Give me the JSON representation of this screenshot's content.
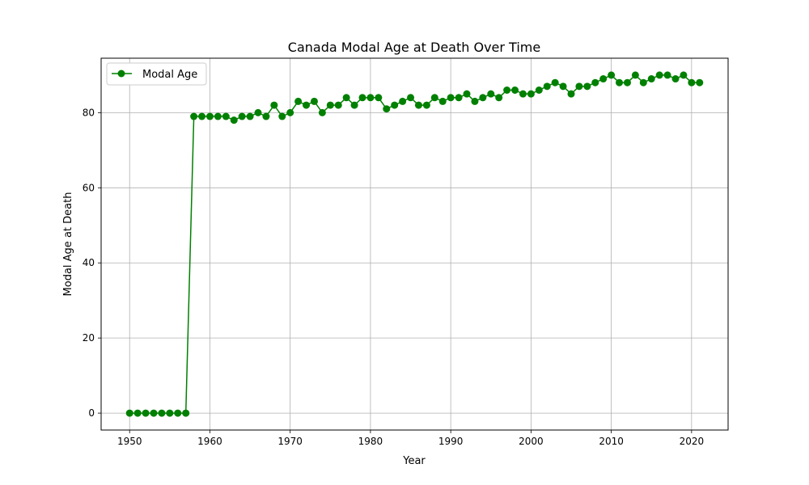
{
  "chart_data": {
    "type": "line",
    "title": "Canada Modal Age at Death Over Time",
    "xlabel": "Year",
    "ylabel": "Modal Age at Death",
    "xlim": [
      1946.45,
      2024.55
    ],
    "ylim": [
      -4.5,
      94.5
    ],
    "xticks": [
      1950,
      1960,
      1970,
      1980,
      1990,
      2000,
      2010,
      2020
    ],
    "yticks": [
      0,
      20,
      40,
      60,
      80
    ],
    "grid": true,
    "legend_position": "top-left",
    "series": [
      {
        "name": "Modal Age",
        "color": "#008000",
        "marker": "circle",
        "x": [
          1950,
          1951,
          1952,
          1953,
          1954,
          1955,
          1956,
          1957,
          1958,
          1959,
          1960,
          1961,
          1962,
          1963,
          1964,
          1965,
          1966,
          1967,
          1968,
          1969,
          1970,
          1971,
          1972,
          1973,
          1974,
          1975,
          1976,
          1977,
          1978,
          1979,
          1980,
          1981,
          1982,
          1983,
          1984,
          1985,
          1986,
          1987,
          1988,
          1989,
          1990,
          1991,
          1992,
          1993,
          1994,
          1995,
          1996,
          1997,
          1998,
          1999,
          2000,
          2001,
          2002,
          2003,
          2004,
          2005,
          2006,
          2007,
          2008,
          2009,
          2010,
          2011,
          2012,
          2013,
          2014,
          2015,
          2016,
          2017,
          2018,
          2019,
          2020,
          2021
        ],
        "y": [
          0,
          0,
          0,
          0,
          0,
          0,
          0,
          0,
          79,
          79,
          79,
          79,
          79,
          78,
          79,
          79,
          80,
          79,
          82,
          79,
          80,
          83,
          82,
          83,
          80,
          82,
          82,
          84,
          82,
          84,
          84,
          84,
          81,
          82,
          83,
          84,
          82,
          82,
          84,
          83,
          84,
          84,
          85,
          83,
          84,
          85,
          84,
          86,
          86,
          85,
          85,
          86,
          87,
          88,
          87,
          85,
          87,
          87,
          88,
          89,
          90,
          88,
          88,
          90,
          88,
          89,
          90,
          90,
          89,
          90,
          88,
          88
        ]
      }
    ]
  }
}
